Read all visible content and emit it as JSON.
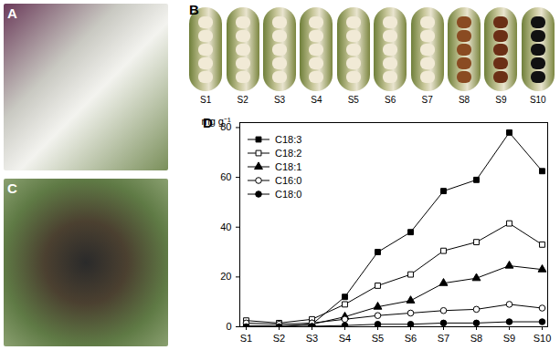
{
  "panel_labels": [
    "A",
    "B",
    "C",
    "D"
  ],
  "stage_labels": [
    "S1",
    "S2",
    "S3",
    "S4",
    "S5",
    "S6",
    "S7",
    "S8",
    "S9",
    "S10"
  ],
  "chart_data": {
    "type": "line",
    "y_label": "mg g⁻¹",
    "categories": [
      "S1",
      "S2",
      "S3",
      "S4",
      "S5",
      "S6",
      "S7",
      "S8",
      "S9",
      "S10"
    ],
    "series": [
      {
        "name": "C18:3",
        "color": "#000000",
        "marker": "square",
        "values": [
          0,
          0,
          1,
          12,
          30,
          38,
          54.5,
          59,
          78,
          62.5
        ]
      },
      {
        "name": "C18:2",
        "color": "#000000",
        "marker": "square-open",
        "values": [
          2.5,
          1.5,
          3,
          9,
          16.5,
          21,
          30.5,
          34,
          41.5,
          33
        ]
      },
      {
        "name": "C18:1",
        "color": "#000000",
        "marker": "triangle",
        "values": [
          0.5,
          0.3,
          1,
          4,
          8,
          10.5,
          17.5,
          19.5,
          24.5,
          23
        ]
      },
      {
        "name": "C16:0",
        "color": "#000000",
        "marker": "circle-open",
        "values": [
          1.5,
          1,
          1.5,
          3,
          4.5,
          5.5,
          6.5,
          7,
          9,
          7.5
        ]
      },
      {
        "name": "C18:0",
        "color": "#000000",
        "marker": "circle",
        "values": [
          0,
          0,
          0.2,
          0.5,
          1,
          1,
          1.5,
          1.5,
          2,
          2
        ]
      }
    ],
    "ylim": [
      0,
      82
    ],
    "yticks": [
      0,
      20,
      40,
      60,
      80
    ],
    "legend": "upper left",
    "grid": false
  }
}
